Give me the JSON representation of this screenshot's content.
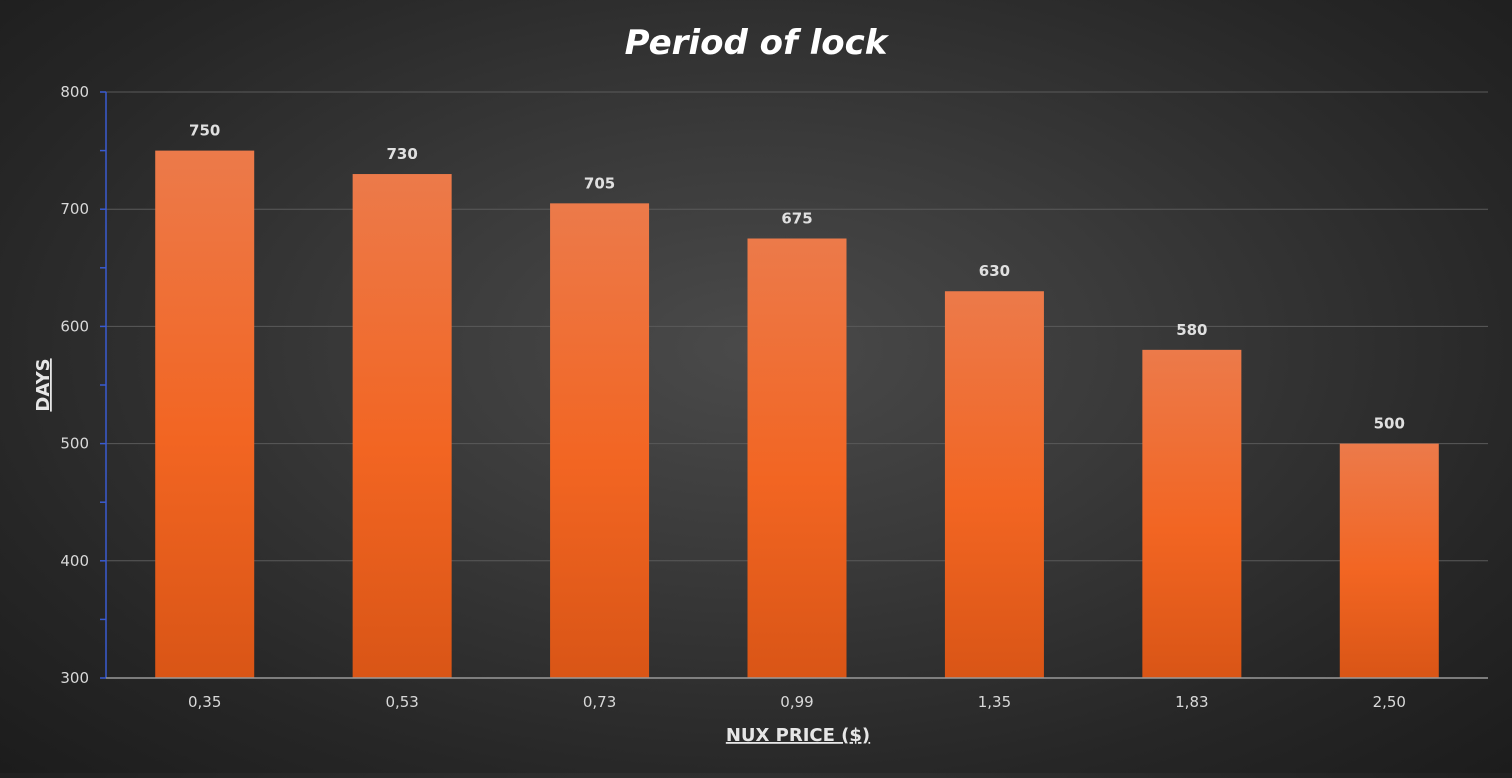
{
  "chart_data": {
    "type": "bar",
    "title": "Period of lock",
    "xlabel": "NUX PRICE ($)",
    "ylabel": "DAYS",
    "categories": [
      "0,35",
      "0,53",
      "0,73",
      "0,99",
      "1,35",
      "1,83",
      "2,50"
    ],
    "values": [
      750,
      730,
      705,
      675,
      630,
      580,
      500
    ],
    "data_labels": [
      "750",
      "730",
      "705",
      "675",
      "630",
      "580",
      "500"
    ],
    "ylim": [
      300,
      800
    ],
    "yticks": [
      "300",
      "400",
      "500",
      "600",
      "700",
      "800"
    ],
    "grid": true,
    "legend": "none",
    "colors": {
      "bar_top": "#ec7a4a",
      "bar_mid": "#f26522",
      "bar_bottom": "#d95516",
      "grid": "#5a5a5a",
      "y_axis": "#3a5bd0",
      "x_axis": "#9a9a9a"
    }
  }
}
